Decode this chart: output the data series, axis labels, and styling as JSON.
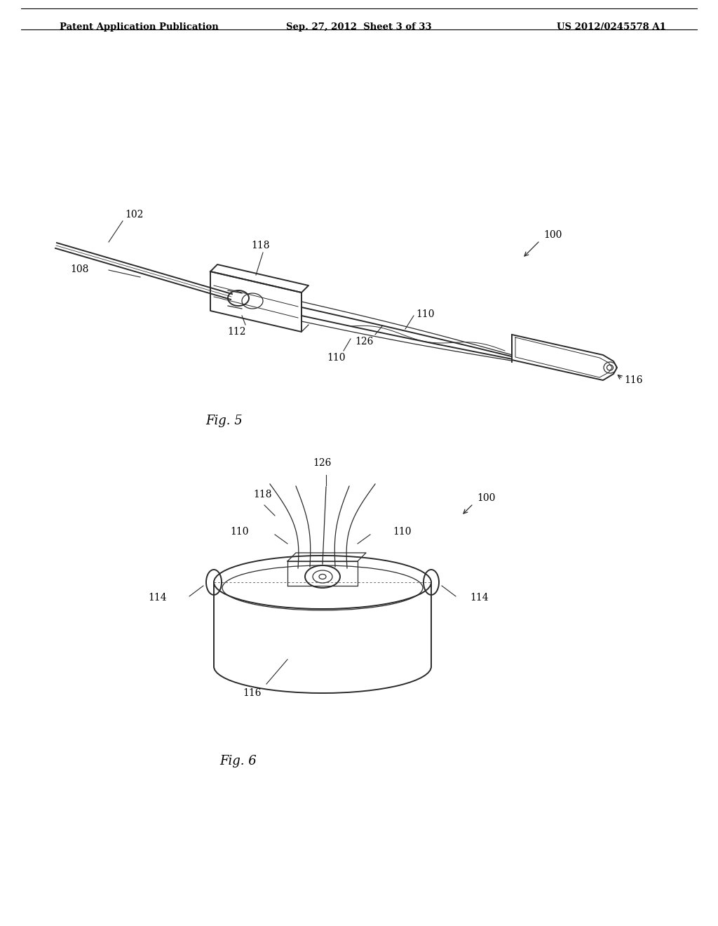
{
  "background_color": "#ffffff",
  "header_left": "Patent Application Publication",
  "header_center": "Sep. 27, 2012  Sheet 3 of 33",
  "header_right": "US 2012/0245578 A1",
  "fig5_label": "Fig. 5",
  "fig6_label": "Fig. 6",
  "line_color": "#2a2a2a",
  "label_fontsize": 10,
  "fig_label_fontsize": 13
}
